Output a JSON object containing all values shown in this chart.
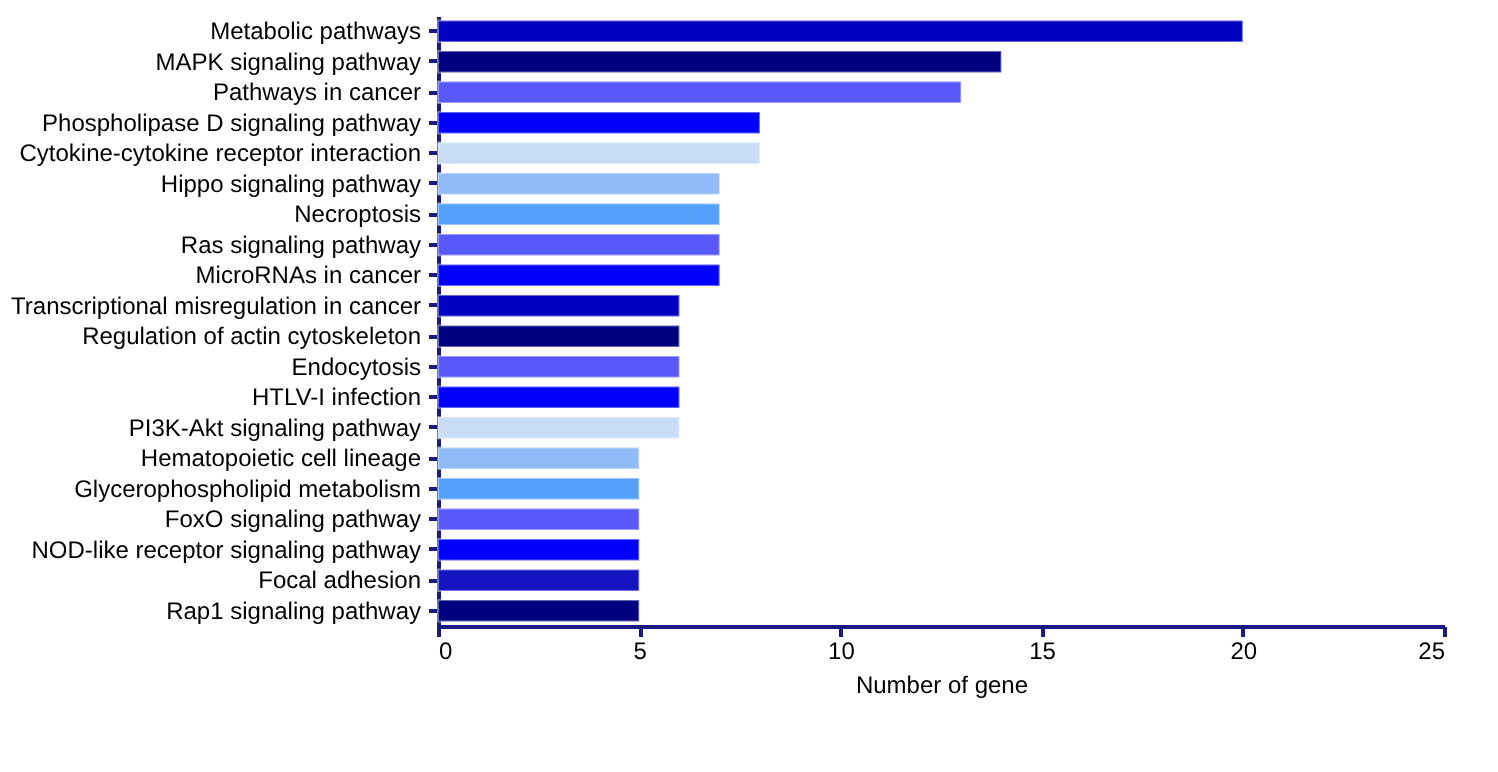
{
  "chart_data": {
    "type": "bar",
    "orientation": "horizontal",
    "xlabel": "Number of gene",
    "categories": [
      "Metabolic pathways",
      "MAPK signaling pathway",
      "Pathways in cancer",
      "Phospholipase D signaling pathway",
      "Cytokine-cytokine receptor interaction",
      "Hippo signaling pathway",
      "Necroptosis",
      "Ras signaling pathway",
      "MicroRNAs in cancer",
      "Transcriptional misregulation in cancer",
      "Regulation of actin cytoskeleton",
      "Endocytosis",
      "HTLV-I infection",
      "PI3K-Akt signaling pathway",
      "Hematopoietic cell lineage",
      "Glycerophospholipid metabolism",
      "FoxO signaling pathway",
      "NOD-like receptor signaling pathway",
      "Focal adhesion",
      "Rap1 signaling pathway"
    ],
    "values": [
      20,
      14,
      13,
      8,
      8,
      7,
      7,
      7,
      7,
      6,
      6,
      6,
      6,
      6,
      5,
      5,
      5,
      5,
      5,
      5
    ],
    "colors": [
      "#0000c0",
      "#000080",
      "#5858fa",
      "#0000ff",
      "#c8dcf8",
      "#8fbbf8",
      "#55a0fc",
      "#5858fa",
      "#0000ff",
      "#0000c0",
      "#000080",
      "#5858fa",
      "#0000ff",
      "#c8dcf8",
      "#8fbbf8",
      "#55a0fc",
      "#5858fa",
      "#0000ff",
      "#1414c0",
      "#000080"
    ],
    "xlim": [
      0,
      25
    ],
    "xticks": [
      0,
      5,
      10,
      15,
      20,
      25
    ],
    "grid": false
  }
}
